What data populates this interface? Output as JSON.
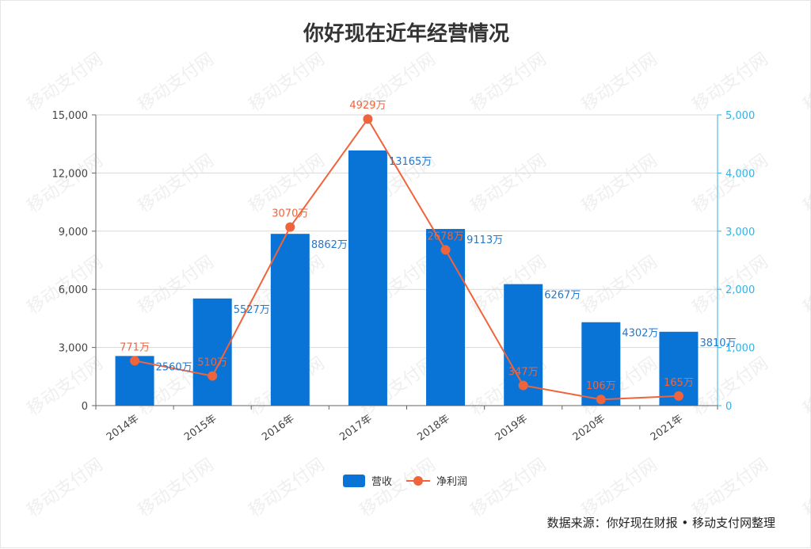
{
  "chart_data": {
    "type": "bar",
    "title": "你好现在近年经营情况",
    "categories": [
      "2014年",
      "2015年",
      "2016年",
      "2017年",
      "2018年",
      "2019年",
      "2020年",
      "2021年"
    ],
    "y_left": {
      "ticks": [
        "0",
        "3,000",
        "6,000",
        "9,000",
        "12,000",
        "15,000"
      ],
      "range": [
        0,
        15000
      ]
    },
    "y_right": {
      "ticks": [
        "0",
        "1,000",
        "2,000",
        "3,000",
        "4,000",
        "5,000"
      ],
      "range": [
        0,
        5000
      ]
    },
    "series": [
      {
        "name": "营收",
        "type": "bar",
        "axis": "left",
        "values": [
          2560,
          5527,
          8862,
          13165,
          9113,
          6267,
          4302,
          3810
        ],
        "labels": [
          "2560万",
          "5527万",
          "8862万",
          "13165万",
          "9113万",
          "6267万",
          "4302万",
          "3810万"
        ],
        "color": "#0a74d6"
      },
      {
        "name": "净利润",
        "type": "line",
        "axis": "right",
        "values": [
          771,
          510,
          3070,
          4929,
          2678,
          347,
          106,
          165
        ],
        "labels": [
          "771万",
          "510万",
          "3070万",
          "4929万",
          "2678万",
          "347万",
          "106万",
          "165万"
        ],
        "color": "#f0643c"
      }
    ],
    "grid": true,
    "legend_position": "bottom-center",
    "source_note": "数据来源：你好现在财报 • 移动支付网整理",
    "watermark": "移动支付网"
  }
}
